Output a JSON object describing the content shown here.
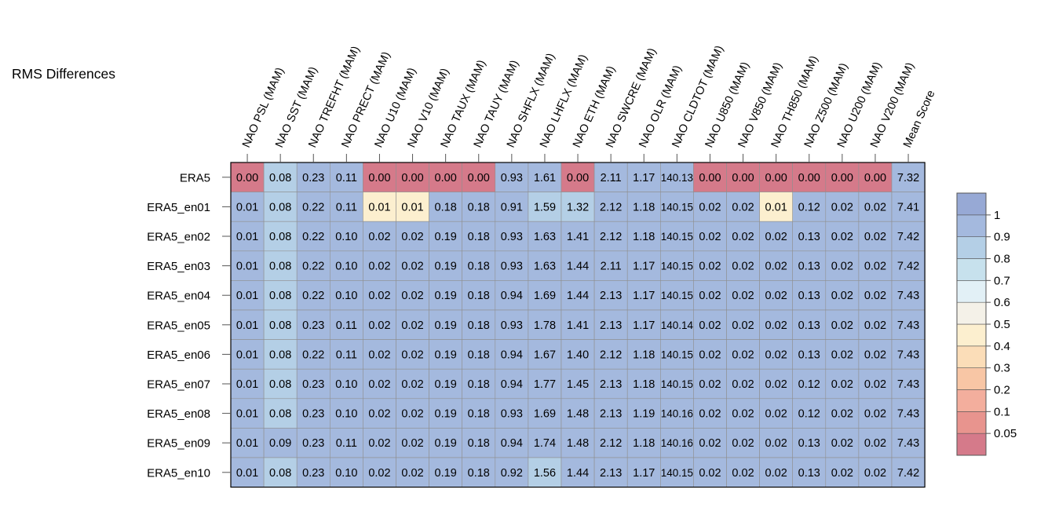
{
  "chart_data": {
    "type": "heatmap",
    "title": "RMS Differences",
    "columns": [
      "NAO PSL (MAM)",
      "NAO SST (MAM)",
      "NAO TREFHT (MAM)",
      "NAO PRECT (MAM)",
      "NAO U10 (MAM)",
      "NAO V10 (MAM)",
      "NAO TAUX (MAM)",
      "NAO TAUY (MAM)",
      "NAO SHFLX (MAM)",
      "NAO LHFLX (MAM)",
      "NAO ETH (MAM)",
      "NAO SWCRE (MAM)",
      "NAO OLR (MAM)",
      "NAO CLDTOT (MAM)",
      "NAO U850 (MAM)",
      "NAO V850 (MAM)",
      "NAO TH850 (MAM)",
      "NAO Z500 (MAM)",
      "NAO U200 (MAM)",
      "NAO V200 (MAM)",
      "Mean Score"
    ],
    "rows": [
      "ERA5",
      "ERA5_en01",
      "ERA5_en02",
      "ERA5_en03",
      "ERA5_en04",
      "ERA5_en05",
      "ERA5_en06",
      "ERA5_en07",
      "ERA5_en08",
      "ERA5_en09",
      "ERA5_en10"
    ],
    "values": [
      [
        "0.00",
        "0.08",
        "0.23",
        "0.11",
        "0.00",
        "0.00",
        "0.00",
        "0.00",
        "0.93",
        "1.61",
        "0.00",
        "2.11",
        "1.17",
        "140.13",
        "0.00",
        "0.00",
        "0.00",
        "0.00",
        "0.00",
        "0.00",
        "7.32"
      ],
      [
        "0.01",
        "0.08",
        "0.22",
        "0.11",
        "0.01",
        "0.01",
        "0.18",
        "0.18",
        "0.91",
        "1.59",
        "1.32",
        "2.12",
        "1.18",
        "140.15",
        "0.02",
        "0.02",
        "0.01",
        "0.12",
        "0.02",
        "0.02",
        "7.41"
      ],
      [
        "0.01",
        "0.08",
        "0.22",
        "0.10",
        "0.02",
        "0.02",
        "0.19",
        "0.18",
        "0.93",
        "1.63",
        "1.41",
        "2.12",
        "1.18",
        "140.15",
        "0.02",
        "0.02",
        "0.02",
        "0.13",
        "0.02",
        "0.02",
        "7.42"
      ],
      [
        "0.01",
        "0.08",
        "0.22",
        "0.10",
        "0.02",
        "0.02",
        "0.19",
        "0.18",
        "0.93",
        "1.63",
        "1.44",
        "2.11",
        "1.17",
        "140.15",
        "0.02",
        "0.02",
        "0.02",
        "0.13",
        "0.02",
        "0.02",
        "7.42"
      ],
      [
        "0.01",
        "0.08",
        "0.22",
        "0.10",
        "0.02",
        "0.02",
        "0.19",
        "0.18",
        "0.94",
        "1.69",
        "1.44",
        "2.13",
        "1.17",
        "140.15",
        "0.02",
        "0.02",
        "0.02",
        "0.13",
        "0.02",
        "0.02",
        "7.43"
      ],
      [
        "0.01",
        "0.08",
        "0.23",
        "0.11",
        "0.02",
        "0.02",
        "0.19",
        "0.18",
        "0.93",
        "1.78",
        "1.41",
        "2.13",
        "1.17",
        "140.14",
        "0.02",
        "0.02",
        "0.02",
        "0.13",
        "0.02",
        "0.02",
        "7.43"
      ],
      [
        "0.01",
        "0.08",
        "0.22",
        "0.11",
        "0.02",
        "0.02",
        "0.19",
        "0.18",
        "0.94",
        "1.67",
        "1.40",
        "2.12",
        "1.18",
        "140.15",
        "0.02",
        "0.02",
        "0.02",
        "0.13",
        "0.02",
        "0.02",
        "7.43"
      ],
      [
        "0.01",
        "0.08",
        "0.23",
        "0.10",
        "0.02",
        "0.02",
        "0.19",
        "0.18",
        "0.94",
        "1.77",
        "1.45",
        "2.13",
        "1.18",
        "140.15",
        "0.02",
        "0.02",
        "0.02",
        "0.12",
        "0.02",
        "0.02",
        "7.43"
      ],
      [
        "0.01",
        "0.08",
        "0.23",
        "0.10",
        "0.02",
        "0.02",
        "0.19",
        "0.18",
        "0.93",
        "1.69",
        "1.48",
        "2.13",
        "1.19",
        "140.16",
        "0.02",
        "0.02",
        "0.02",
        "0.12",
        "0.02",
        "0.02",
        "7.43"
      ],
      [
        "0.01",
        "0.09",
        "0.23",
        "0.11",
        "0.02",
        "0.02",
        "0.19",
        "0.18",
        "0.94",
        "1.74",
        "1.48",
        "2.12",
        "1.18",
        "140.16",
        "0.02",
        "0.02",
        "0.02",
        "0.13",
        "0.02",
        "0.02",
        "7.43"
      ],
      [
        "0.01",
        "0.08",
        "0.23",
        "0.10",
        "0.02",
        "0.02",
        "0.19",
        "0.18",
        "0.92",
        "1.56",
        "1.44",
        "2.13",
        "1.17",
        "140.15",
        "0.02",
        "0.02",
        "0.02",
        "0.13",
        "0.02",
        "0.02",
        "7.42"
      ]
    ],
    "colorbar": {
      "colors": [
        "#d57a8a",
        "#e8948e",
        "#f3ae9d",
        "#f8c6a5",
        "#fbddb8",
        "#fcefcf",
        "#f4f1e8",
        "#e2f0f6",
        "#c7e1ed",
        "#b4cfe6",
        "#a4b9de",
        "#97a9d5"
      ],
      "labels": [
        "0.05",
        "0.1",
        "0.2",
        "0.3",
        "0.4",
        "0.5",
        "0.6",
        "0.7",
        "0.8",
        "0.9",
        "1"
      ]
    },
    "thresholds": [
      0.05,
      0.1,
      0.2,
      0.3,
      0.4,
      0.5,
      0.6,
      0.7,
      0.8,
      0.9,
      1.0
    ]
  }
}
